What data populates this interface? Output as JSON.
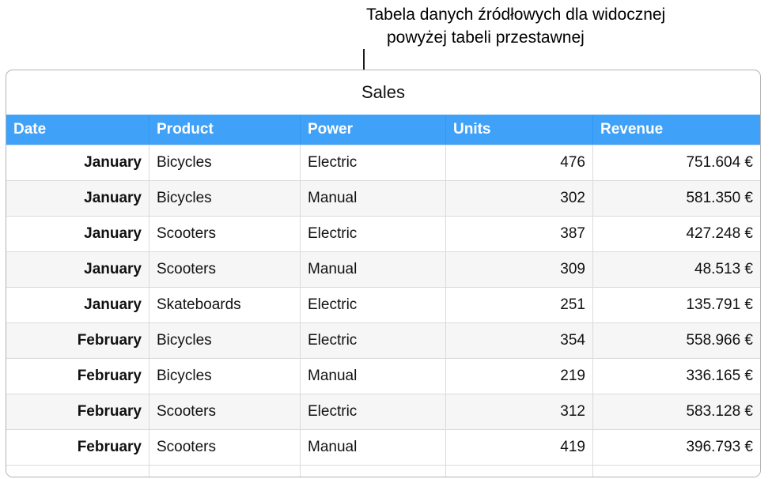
{
  "annotation": {
    "line1": "Tabela danych źródłowych dla widocznej",
    "line2": "powyżej tabeli przestawnej"
  },
  "colors": {
    "header_bg": "#40a1f8"
  },
  "table": {
    "title": "Sales",
    "columns": [
      "Date",
      "Product",
      "Power",
      "Units",
      "Revenue"
    ],
    "rows": [
      [
        "January",
        "Bicycles",
        "Electric",
        "476",
        "751.604 €"
      ],
      [
        "January",
        "Bicycles",
        "Manual",
        "302",
        "581.350 €"
      ],
      [
        "January",
        "Scooters",
        "Electric",
        "387",
        "427.248 €"
      ],
      [
        "January",
        "Scooters",
        "Manual",
        "309",
        "48.513 €"
      ],
      [
        "January",
        "Skateboards",
        "Electric",
        "251",
        "135.791 €"
      ],
      [
        "February",
        "Bicycles",
        "Electric",
        "354",
        "558.966 €"
      ],
      [
        "February",
        "Bicycles",
        "Manual",
        "219",
        "336.165 €"
      ],
      [
        "February",
        "Scooters",
        "Electric",
        "312",
        "583.128 €"
      ],
      [
        "February",
        "Scooters",
        "Manual",
        "419",
        "396.793 €"
      ]
    ]
  }
}
